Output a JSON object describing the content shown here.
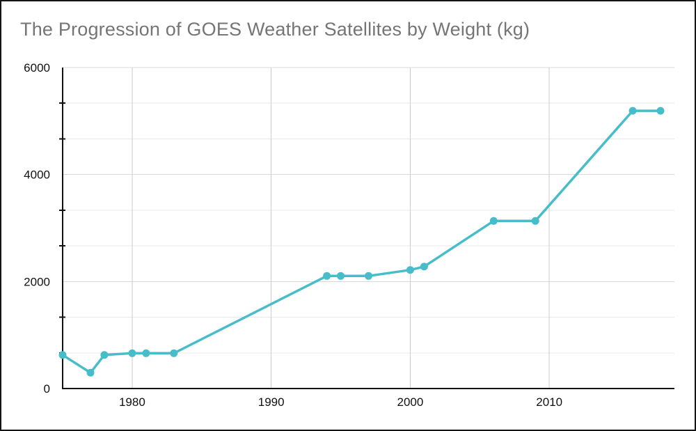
{
  "window": {
    "background": "#ffffff",
    "border_color": "#141414"
  },
  "chart_data": {
    "type": "line",
    "title": "The Progression of GOES Weather Satellites by Weight (kg)",
    "title_color": "#757575",
    "xlabel": "",
    "ylabel": "",
    "x": [
      1975,
      1977,
      1978,
      1980,
      1981,
      1983,
      1994,
      1995,
      1997,
      2000,
      2001,
      2006,
      2009,
      2016,
      2018
    ],
    "series": [
      {
        "color": "#46BDC9",
        "values": [
          627,
          295,
          627,
          660,
          660,
          660,
          2105,
          2105,
          2105,
          2217,
          2279,
          3133,
          3133,
          5192,
          5192
        ]
      }
    ],
    "xlim": [
      1975,
      2019
    ],
    "ylim": [
      0,
      6000
    ],
    "x_ticks": [
      1980,
      1990,
      2000,
      2010
    ],
    "y_ticks": [
      0,
      2000,
      4000,
      6000
    ],
    "y_minor_step": 666.6667,
    "grid": true,
    "legend": "none",
    "style": {
      "axis_color": "#111111",
      "axis_width": 2,
      "tick_color": "#111111",
      "gridline_vertical_color": "#cccccc",
      "gridline_major_color": "#d9d9d9",
      "gridline_minor_color": "#e8e8e8",
      "line_width": 3.5,
      "marker_radius": 5.5,
      "label_color": "#111111"
    }
  }
}
